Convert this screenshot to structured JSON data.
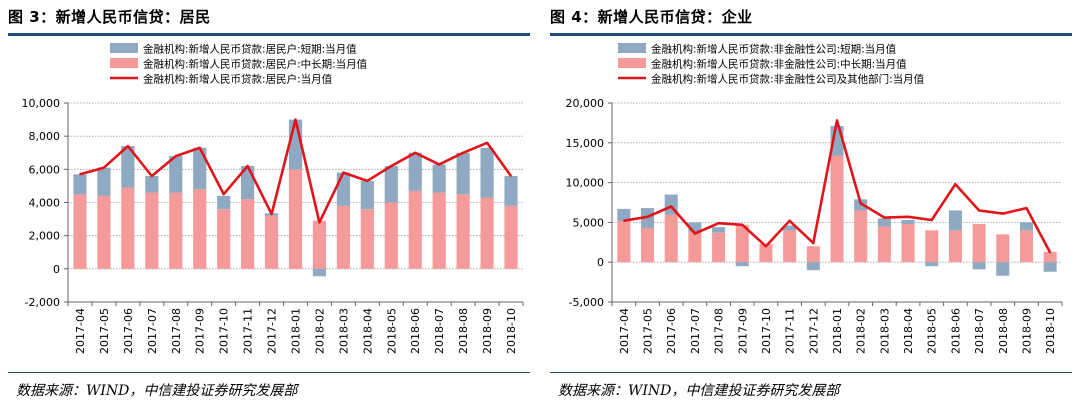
{
  "figures": [
    {
      "title": "图 3：新增人民币信贷：居民",
      "source": "数据来源：WIND，中信建投证券研究发展部"
    },
    {
      "title": "图 4：新增人民币信贷：企业",
      "source": "数据来源：WIND，中信建投证券研究发展部"
    }
  ],
  "colors": {
    "short": "#8ea9c1",
    "long": "#f49a9a",
    "line": "#e0151b",
    "rule": "#1f4e79"
  },
  "chart_data": [
    {
      "type": "bar",
      "stacked": true,
      "categories": [
        "2017-04",
        "2017-05",
        "2017-06",
        "2017-07",
        "2017-08",
        "2017-09",
        "2017-10",
        "2017-11",
        "2017-12",
        "2018-01",
        "2018-02",
        "2018-03",
        "2018-04",
        "2018-05",
        "2018-06",
        "2018-07",
        "2018-08",
        "2018-09",
        "2018-10"
      ],
      "series": [
        {
          "name": "金融机构:新增人民币贷款:居民户:短期:当月值",
          "kind": "bar",
          "color": "#8ea9c1",
          "values": [
            1200,
            1700,
            2500,
            1000,
            2200,
            2500,
            800,
            2000,
            150,
            3000,
            -450,
            2000,
            1700,
            2200,
            2300,
            1700,
            2500,
            3000,
            1800
          ]
        },
        {
          "name": "金融机构:新增人民币贷款:居民户:中长期:当月值",
          "kind": "bar",
          "color": "#f49a9a",
          "values": [
            4500,
            4400,
            4900,
            4600,
            4600,
            4800,
            3600,
            4200,
            3200,
            6000,
            2900,
            3800,
            3600,
            4000,
            4700,
            4600,
            4500,
            4300,
            3800
          ]
        },
        {
          "name": "金融机构:新增人民币贷款:居民户:当月值",
          "kind": "line",
          "color": "#e0151b",
          "values": [
            5700,
            6100,
            7400,
            5600,
            6800,
            7300,
            4500,
            6200,
            3300,
            9000,
            2800,
            5800,
            5300,
            6200,
            7000,
            6300,
            7000,
            7600,
            5600
          ]
        }
      ],
      "yticks": [
        "10,000",
        "8,000",
        "6,000",
        "4,000",
        "2,000",
        "0",
        "-2,000"
      ],
      "ylim": [
        -2000,
        10000
      ],
      "legend": "top",
      "grid": true
    },
    {
      "type": "bar",
      "stacked": true,
      "categories": [
        "2017-04",
        "2017-05",
        "2017-06",
        "2017-07",
        "2017-08",
        "2017-09",
        "2017-10",
        "2017-11",
        "2017-12",
        "2018-01",
        "2018-02",
        "2018-03",
        "2018-04",
        "2018-05",
        "2018-06",
        "2018-07",
        "2018-08",
        "2018-09",
        "2018-10"
      ],
      "series": [
        {
          "name": "金融机构:新增人民币贷款:非金融性公司:短期:当月值",
          "kind": "bar",
          "color": "#8ea9c1",
          "values": [
            1500,
            2500,
            2500,
            1200,
            700,
            -500,
            0,
            600,
            -1000,
            3700,
            1400,
            1000,
            500,
            -500,
            2500,
            -900,
            -1700,
            1000,
            -1200
          ]
        },
        {
          "name": "金融机构:新增人民币贷款:非金融性公司:中长期:当月值",
          "kind": "bar",
          "color": "#f49a9a",
          "values": [
            5200,
            4300,
            6000,
            3800,
            3700,
            4700,
            2300,
            4000,
            2000,
            13400,
            6500,
            4500,
            4800,
            4000,
            4000,
            4800,
            3500,
            4000,
            1300
          ]
        },
        {
          "name": "金融机构:新增人民币贷款:非金融性公司及其他部门:当月值",
          "kind": "line",
          "color": "#e0151b",
          "values": [
            5200,
            5700,
            7000,
            3600,
            4900,
            4700,
            2000,
            5200,
            2400,
            17800,
            7400,
            5600,
            5700,
            5300,
            9800,
            6500,
            6100,
            6800,
            1200
          ]
        }
      ],
      "yticks": [
        "20,000",
        "15,000",
        "10,000",
        "5,000",
        "0",
        "-5,000"
      ],
      "ylim": [
        -5000,
        20000
      ],
      "legend": "top",
      "grid": true
    }
  ]
}
